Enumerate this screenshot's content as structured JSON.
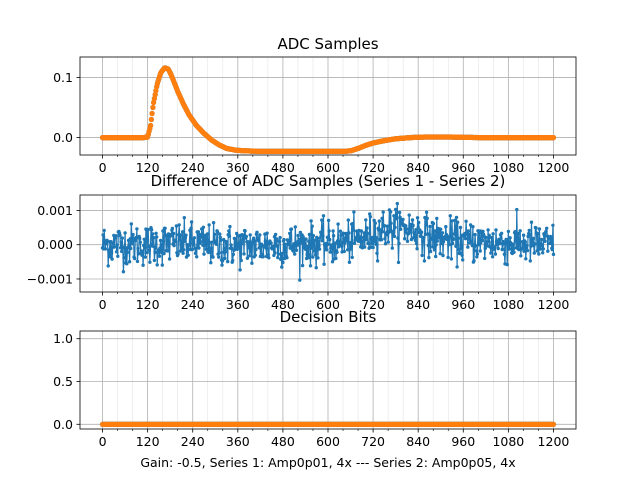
{
  "chart_data": [
    {
      "type": "scatter",
      "title": "ADC Samples",
      "xlim": [
        -60,
        1260
      ],
      "ylim": [
        -0.029,
        0.134
      ],
      "xticks": [
        0,
        120,
        240,
        360,
        480,
        600,
        720,
        840,
        960,
        1080,
        1200
      ],
      "yticks": [
        0.0,
        0.1
      ],
      "ytick_labels": [
        "0.0",
        "0.1"
      ],
      "grid": true,
      "series": [
        {
          "name": "Series 1",
          "color": "#1f77b4",
          "x": [
            0,
            110,
            120,
            128,
            135,
            145,
            155,
            165,
            175,
            182,
            190,
            200,
            215,
            230,
            250,
            270,
            290,
            310,
            330,
            355,
            380,
            420,
            480,
            560,
            640,
            660,
            680,
            700,
            720,
            750,
            780,
            820,
            860,
            920,
            1000,
            1100,
            1200
          ],
          "y": [
            0.0,
            0.0,
            0.001,
            0.02,
            0.055,
            0.088,
            0.108,
            0.116,
            0.114,
            0.105,
            0.093,
            0.077,
            0.056,
            0.038,
            0.02,
            0.007,
            -0.004,
            -0.012,
            -0.018,
            -0.021,
            -0.022,
            -0.023,
            -0.023,
            -0.023,
            -0.023,
            -0.022,
            -0.018,
            -0.013,
            -0.009,
            -0.005,
            -0.002,
            0.0,
            0.001,
            0.001,
            0.0,
            0.0,
            0.0
          ]
        },
        {
          "name": "Series 2",
          "color": "#ff7f0e",
          "x": [
            0,
            110,
            120,
            128,
            135,
            145,
            155,
            165,
            175,
            182,
            190,
            200,
            215,
            230,
            250,
            270,
            290,
            310,
            330,
            355,
            380,
            420,
            480,
            560,
            640,
            660,
            680,
            700,
            720,
            750,
            780,
            820,
            860,
            920,
            1000,
            1100,
            1200
          ],
          "y": [
            0.0,
            0.0,
            0.001,
            0.02,
            0.055,
            0.088,
            0.108,
            0.116,
            0.114,
            0.105,
            0.093,
            0.077,
            0.056,
            0.038,
            0.02,
            0.007,
            -0.004,
            -0.012,
            -0.018,
            -0.021,
            -0.022,
            -0.023,
            -0.023,
            -0.023,
            -0.023,
            -0.022,
            -0.018,
            -0.013,
            -0.009,
            -0.005,
            -0.002,
            0.0,
            0.001,
            0.001,
            0.0,
            0.0,
            0.0
          ]
        }
      ]
    },
    {
      "type": "line",
      "title": "Difference of ADC Samples (Series 1 - Series 2)",
      "xlim": [
        -60,
        1260
      ],
      "ylim": [
        -0.00138,
        0.00145
      ],
      "xticks": [
        0,
        120,
        240,
        360,
        480,
        600,
        720,
        840,
        960,
        1080,
        1200
      ],
      "yticks": [
        -0.001,
        0.0,
        0.001
      ],
      "ytick_labels": [
        "−0.001",
        "0.000",
        "0.001"
      ],
      "grid": true,
      "series": [
        {
          "name": "Difference",
          "color": "#1f77b4",
          "noise_std": 0.0003,
          "x": [
            0,
            120,
            200,
            280,
            360,
            480,
            600,
            660,
            700,
            720,
            760,
            800,
            840,
            880,
            960,
            1080,
            1200
          ],
          "y": [
            0.0,
            0.0,
            5e-05,
            0.0,
            -5e-05,
            0.0,
            3e-05,
            0.0001,
            0.0002,
            0.00035,
            0.0005,
            0.0005,
            0.0004,
            0.0002,
            0.0001,
            5e-05,
            0.0
          ]
        }
      ]
    },
    {
      "type": "scatter",
      "title": "Decision Bits",
      "xlabel": "Gain: -0.5, Series 1: Amp0p01, 4x --- Series 2: Amp0p05, 4x",
      "xlim": [
        -60,
        1260
      ],
      "ylim": [
        -0.055,
        1.09
      ],
      "xticks": [
        0,
        120,
        240,
        360,
        480,
        600,
        720,
        840,
        960,
        1080,
        1200
      ],
      "yticks": [
        0.0,
        0.5,
        1.0
      ],
      "ytick_labels": [
        "0.0",
        "0.5",
        "1.0"
      ],
      "grid": true,
      "series": [
        {
          "name": "Series 1",
          "color": "#1f77b4",
          "x": [
            0,
            1200
          ],
          "y": [
            0,
            0
          ]
        },
        {
          "name": "Series 2",
          "color": "#ff7f0e",
          "x": [
            0,
            1200
          ],
          "y": [
            0,
            0
          ]
        }
      ]
    }
  ]
}
